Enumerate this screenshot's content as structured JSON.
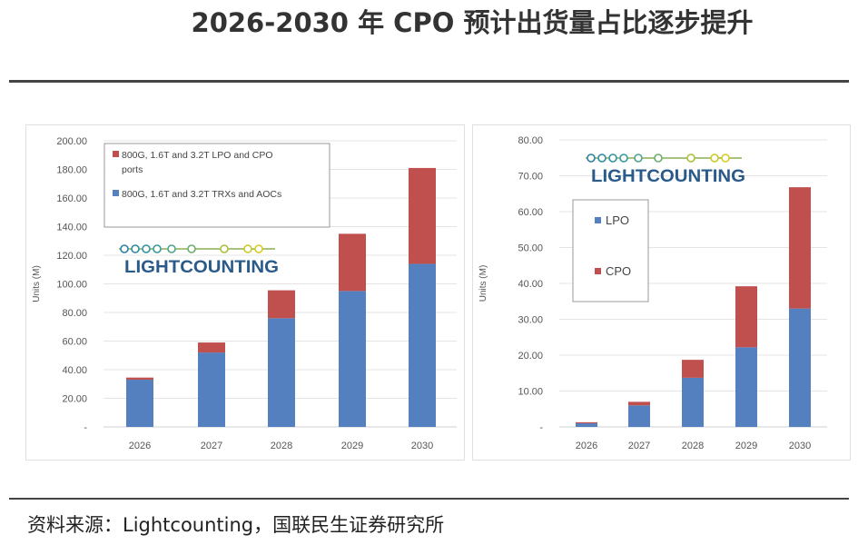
{
  "title": "2026-2030 年  CPO 预计出货量占比逐步提升",
  "footer": "资料来源：Lightcounting，国联民生证券研究所",
  "logo_text": "LIGHTCOUNTING",
  "chart_data": [
    {
      "type": "bar",
      "stacked": true,
      "ylabel": "Units (M)",
      "ylim": [
        0,
        200
      ],
      "yticks": [
        "-",
        "20.00",
        "40.00",
        "60.00",
        "80.00",
        "100.00",
        "120.00",
        "140.00",
        "160.00",
        "180.00",
        "200.00"
      ],
      "categories": [
        "2026",
        "2027",
        "2028",
        "2029",
        "2030"
      ],
      "series": [
        {
          "name": "800G, 1.6T and 3.2T TRXs and AOCs",
          "legend_lines": [
            "800G, 1.6T and 3.2T TRXs and AOCs"
          ],
          "color": "#5580c0",
          "values": [
            33,
            52,
            76,
            95,
            114
          ]
        },
        {
          "name": "800G, 1.6T and 3.2T LPO and CPO ports",
          "legend_lines": [
            "800G, 1.6T and 3.2T LPO and CPO",
            "ports"
          ],
          "color": "#c0504d",
          "values": [
            1.5,
            7,
            19.5,
            40,
            67
          ]
        }
      ],
      "legend": "top-left",
      "grid": true
    },
    {
      "type": "bar",
      "stacked": true,
      "ylabel": "Units (M)",
      "ylim": [
        0,
        80
      ],
      "yticks": [
        "-",
        "10.00",
        "20.00",
        "30.00",
        "40.00",
        "50.00",
        "60.00",
        "70.00",
        "80.00"
      ],
      "categories": [
        "2026",
        "2027",
        "2028",
        "2029",
        "2030"
      ],
      "series": [
        {
          "name": "LPO",
          "legend_lines": [
            "LPO"
          ],
          "color": "#5580c0",
          "values": [
            1,
            6,
            13.7,
            22.2,
            33
          ]
        },
        {
          "name": "CPO",
          "legend_lines": [
            "CPO"
          ],
          "color": "#c0504d",
          "values": [
            0.3,
            1,
            5,
            17,
            33.8
          ]
        }
      ],
      "legend": "left",
      "grid": true
    }
  ]
}
